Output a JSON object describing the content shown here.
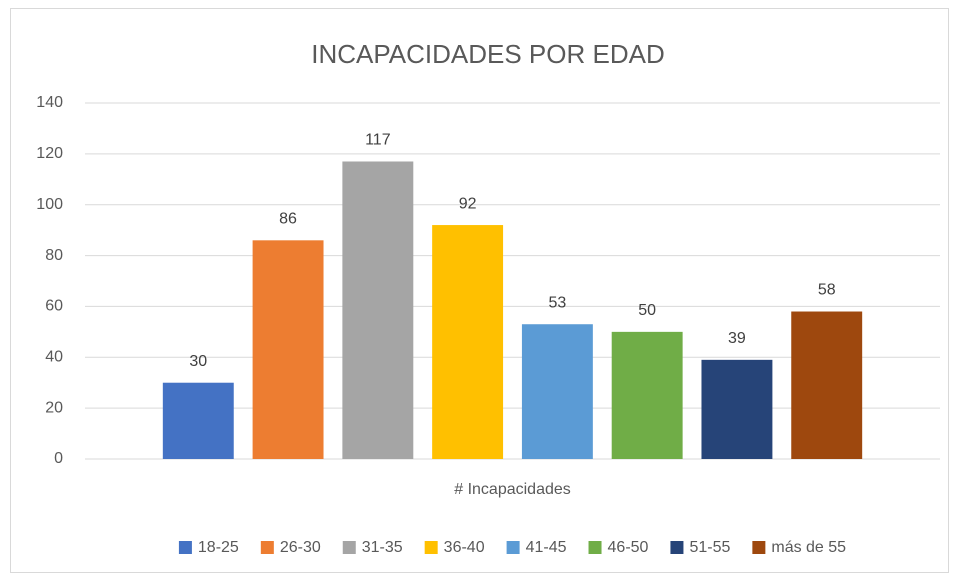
{
  "chart_data": {
    "type": "bar",
    "title": "INCAPACIDADES POR EDAD",
    "categories": [
      "# Incapacidades"
    ],
    "series": [
      {
        "name": "18-25",
        "color": "#4472c4",
        "values": [
          30
        ]
      },
      {
        "name": "26-30",
        "color": "#ed7d31",
        "values": [
          86
        ]
      },
      {
        "name": "31-35",
        "color": "#a5a5a5",
        "values": [
          117
        ]
      },
      {
        "name": "36-40",
        "color": "#ffc000",
        "values": [
          92
        ]
      },
      {
        "name": "41-45",
        "color": "#5b9bd5",
        "values": [
          53
        ]
      },
      {
        "name": "46-50",
        "color": "#70ad47",
        "values": [
          50
        ]
      },
      {
        "name": "51-55",
        "color": "#264478",
        "values": [
          39
        ]
      },
      {
        "name": "más de 55",
        "color": "#9e480e",
        "values": [
          58
        ]
      }
    ],
    "ylim": [
      0,
      140
    ],
    "yticks": [
      0,
      20,
      40,
      60,
      80,
      100,
      120,
      140
    ],
    "grid": true,
    "legend": "bottom"
  }
}
